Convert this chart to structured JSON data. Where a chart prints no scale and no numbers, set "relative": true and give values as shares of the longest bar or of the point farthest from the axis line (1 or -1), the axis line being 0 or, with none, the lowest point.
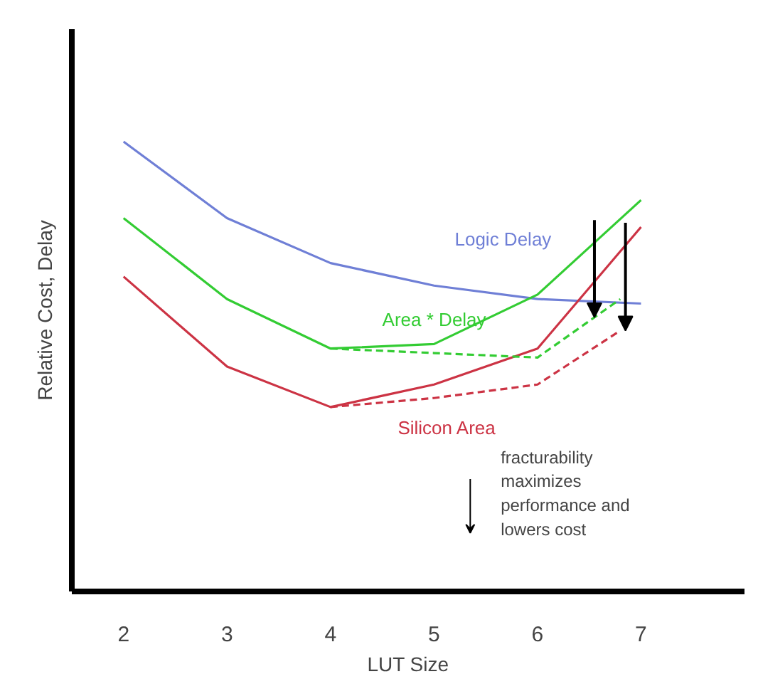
{
  "chart_data": {
    "type": "line",
    "relative": true,
    "xlabel": "LUT Size",
    "ylabel": "Relative Cost, Delay",
    "x": [
      2,
      3,
      4,
      5,
      6,
      7
    ],
    "xlim": [
      1.5,
      8
    ],
    "xticks": [
      2,
      3,
      4,
      5,
      6,
      7
    ],
    "grid": false,
    "marker": "none",
    "series": [
      {
        "name": "Logic Delay",
        "color": "#6f7fd6",
        "values": [
          1,
          0.83,
          0.73,
          0.68,
          0.65,
          0.64
        ]
      },
      {
        "name": "Area * Delay",
        "color": "#33cc33",
        "values": [
          0.83,
          0.65,
          0.54,
          0.55,
          0.66,
          0.87
        ]
      },
      {
        "name": "Silicon Area",
        "color": "#cc3344",
        "values": [
          0.7,
          0.5,
          0.41,
          0.46,
          0.54,
          0.81
        ]
      },
      {
        "color": "#33cc33",
        "x": [
          4,
          5,
          6,
          6.8
        ],
        "values": [
          0.54,
          0.53,
          0.52,
          0.65
        ],
        "line_style": "dashed"
      },
      {
        "color": "#cc3344",
        "x": [
          4,
          5,
          6,
          6.8
        ],
        "values": [
          0.41,
          0.43,
          0.46,
          0.58
        ],
        "line_style": "dashed"
      }
    ],
    "annotations": [
      "fracturability\nmaximizes\nperformance and\nlowers cost"
    ]
  }
}
